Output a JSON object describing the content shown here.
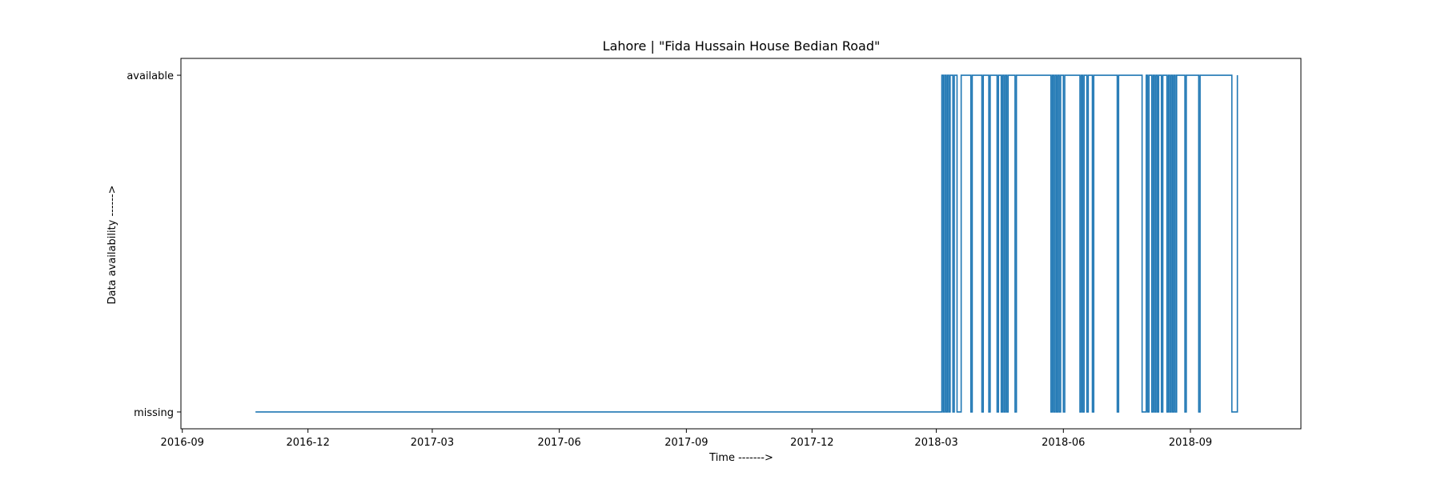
{
  "chart_data": {
    "type": "line",
    "drawstyle": "steps",
    "title": "Lahore | \"Fida Hussain House Bedian Road\"",
    "xlabel": "Time ------->",
    "ylabel": "Data availability ------>",
    "x_scale": "date",
    "xlim": [
      "2016-08-31",
      "2018-11-20"
    ],
    "x_ticks": [
      "2016-09-01",
      "2016-12-01",
      "2017-03-01",
      "2017-06-01",
      "2017-09-01",
      "2017-12-01",
      "2018-03-01",
      "2018-06-01",
      "2018-09-01"
    ],
    "x_tick_labels": [
      "2016-09",
      "2016-12",
      "2017-03",
      "2017-06",
      "2017-09",
      "2017-12",
      "2018-03",
      "2018-06",
      "2018-09"
    ],
    "y_categories": [
      "missing",
      "available"
    ],
    "ylim": [
      -0.05,
      1.05
    ],
    "grid": false,
    "color": "#1f77b4",
    "series": [
      {
        "x": [
          "2016-10-24",
          "2018-03-05",
          "2018-03-06",
          "2018-03-07",
          "2018-03-08",
          "2018-03-09",
          "2018-03-10",
          "2018-03-11",
          "2018-03-13",
          "2018-03-14",
          "2018-03-16",
          "2018-03-19",
          "2018-03-26",
          "2018-03-27",
          "2018-04-03",
          "2018-04-04",
          "2018-04-08",
          "2018-04-09",
          "2018-04-14",
          "2018-04-15",
          "2018-04-17",
          "2018-04-18",
          "2018-04-19",
          "2018-04-20",
          "2018-04-21",
          "2018-04-22",
          "2018-04-27",
          "2018-04-28",
          "2018-05-23",
          "2018-05-24",
          "2018-05-25",
          "2018-05-26",
          "2018-05-27",
          "2018-05-28",
          "2018-05-29",
          "2018-05-30",
          "2018-06-01",
          "2018-06-02",
          "2018-06-13",
          "2018-06-14",
          "2018-06-15",
          "2018-06-16",
          "2018-06-18",
          "2018-06-19",
          "2018-06-22",
          "2018-06-23",
          "2018-07-10",
          "2018-07-11",
          "2018-07-28",
          "2018-07-31",
          "2018-08-01",
          "2018-08-02",
          "2018-08-04",
          "2018-08-05",
          "2018-08-06",
          "2018-08-07",
          "2018-08-08",
          "2018-08-09",
          "2018-08-11",
          "2018-08-12",
          "2018-08-15",
          "2018-08-16",
          "2018-08-17",
          "2018-08-18",
          "2018-08-19",
          "2018-08-20",
          "2018-08-21",
          "2018-08-22",
          "2018-08-28",
          "2018-08-29",
          "2018-09-07",
          "2018-09-08",
          "2018-10-01",
          "2018-10-05"
        ],
        "y": [
          0,
          1,
          0,
          1,
          0,
          1,
          0,
          1,
          0,
          1,
          0,
          1,
          0,
          1,
          0,
          1,
          0,
          1,
          0,
          1,
          0,
          1,
          0,
          1,
          0,
          1,
          0,
          1,
          0,
          1,
          0,
          1,
          0,
          1,
          0,
          1,
          0,
          1,
          0,
          1,
          0,
          1,
          0,
          1,
          0,
          1,
          0,
          1,
          0,
          1,
          0,
          1,
          0,
          1,
          0,
          1,
          0,
          1,
          0,
          1,
          0,
          1,
          0,
          1,
          0,
          1,
          0,
          1,
          0,
          1,
          0,
          1,
          0,
          1
        ]
      }
    ]
  }
}
